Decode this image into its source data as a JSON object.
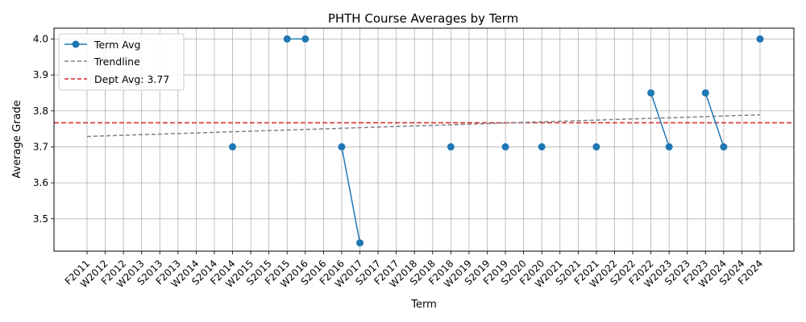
{
  "chart_data": {
    "type": "line",
    "title": "PHTH Course Averages by Term",
    "xlabel": "Term",
    "ylabel": "Average Grade",
    "categories": [
      "F2011",
      "W2012",
      "F2012",
      "W2013",
      "S2013",
      "F2013",
      "W2014",
      "S2014",
      "F2014",
      "W2015",
      "S2015",
      "F2015",
      "W2016",
      "S2016",
      "F2016",
      "W2017",
      "S2017",
      "F2017",
      "W2018",
      "S2018",
      "F2018",
      "W2019",
      "S2019",
      "F2019",
      "S2020",
      "F2020",
      "W2021",
      "S2021",
      "F2021",
      "W2022",
      "S2022",
      "F2022",
      "W2023",
      "S2023",
      "F2023",
      "W2024",
      "S2024",
      "F2024"
    ],
    "ylim": [
      3.41,
      4.03
    ],
    "yticks": [
      "3.5",
      "3.6",
      "3.7",
      "3.8",
      "3.9",
      "4.0"
    ],
    "grid": true,
    "legend_position": "top-left",
    "series": [
      {
        "name": "Term Avg",
        "color": "#1f77b4",
        "values": [
          null,
          null,
          null,
          null,
          null,
          null,
          null,
          null,
          3.7,
          null,
          null,
          4.0,
          4.0,
          null,
          3.7,
          3.433,
          null,
          null,
          null,
          null,
          3.7,
          null,
          null,
          3.7,
          null,
          3.7,
          null,
          null,
          3.7,
          null,
          null,
          3.85,
          3.7,
          null,
          3.85,
          3.7,
          null,
          4.0
        ]
      }
    ],
    "trendline": {
      "name": "Trendline",
      "color": "#808080",
      "start": 3.729,
      "end": 3.789
    },
    "reference_line": {
      "name": "Dept Avg: 3.77",
      "value": 3.767,
      "color": "#d62728"
    }
  }
}
